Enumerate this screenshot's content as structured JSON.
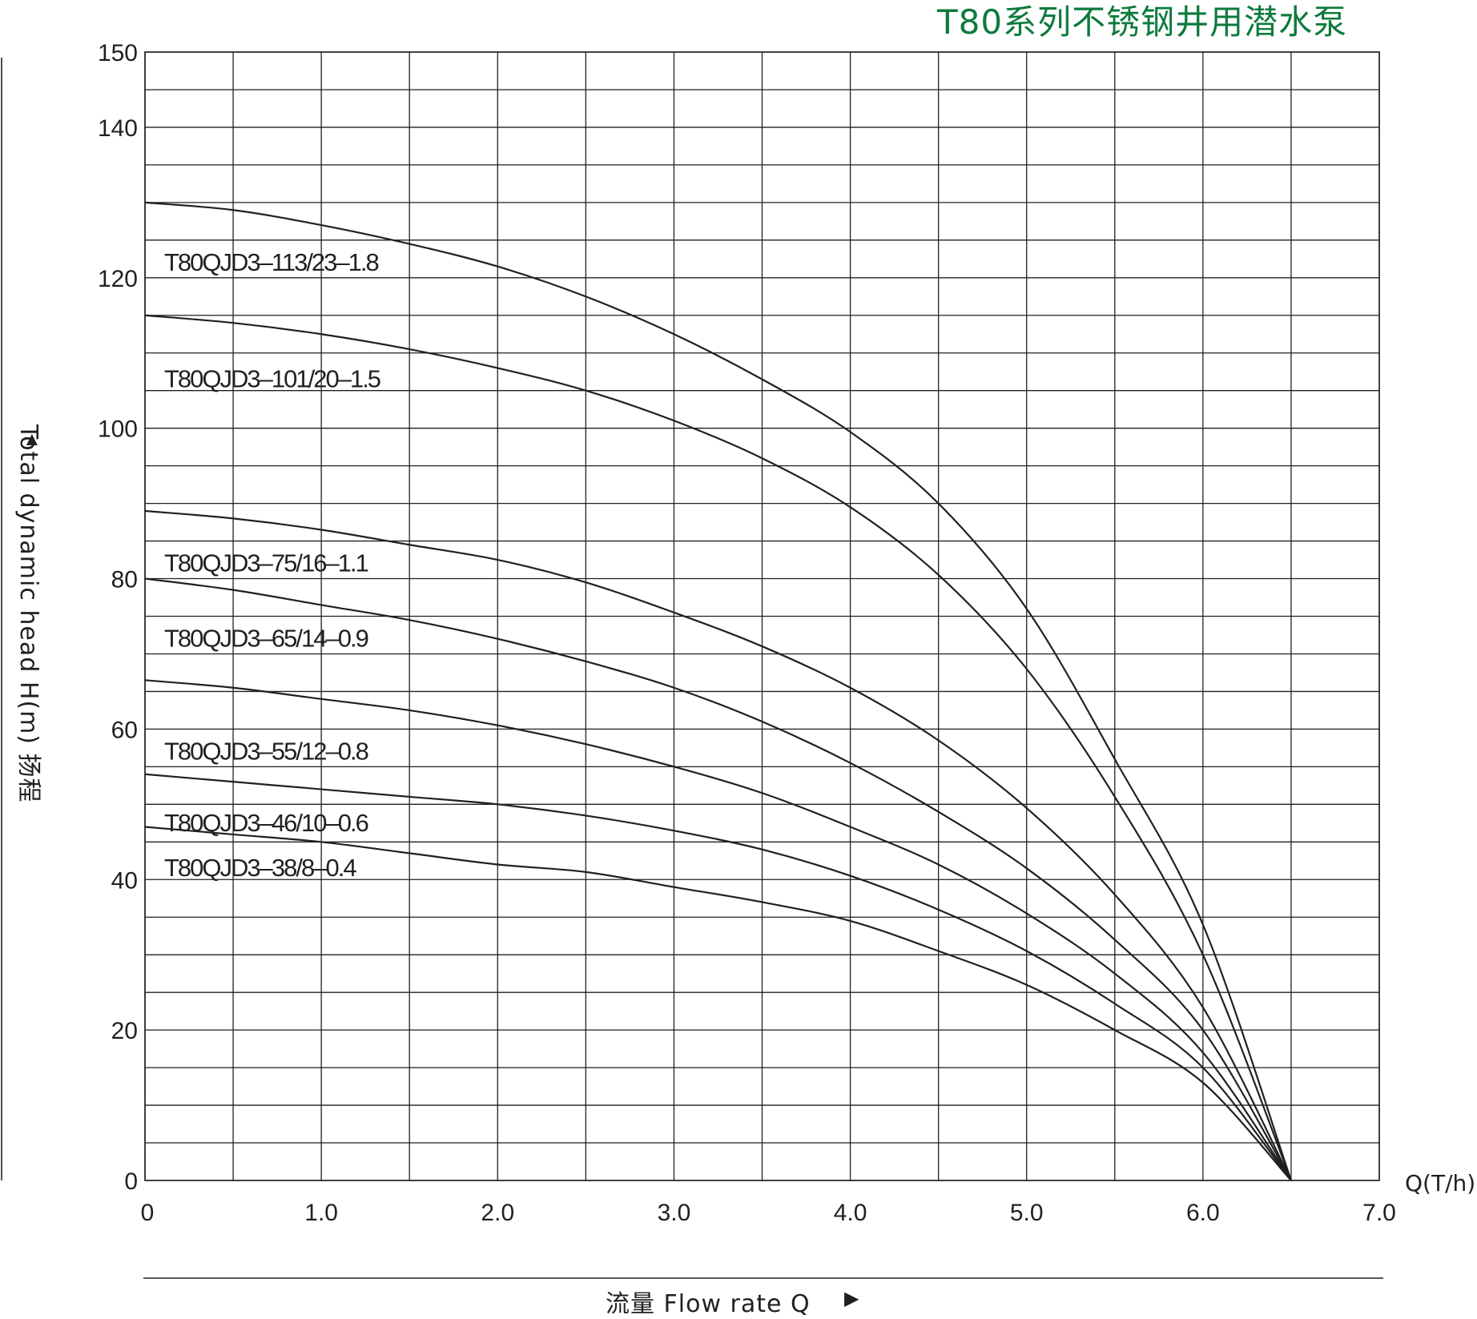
{
  "title": "T80系列不锈钢井用潜水泵",
  "ylabel": "Total dynamic head H(m) 扬程",
  "xlabel": "流量  Flow rate Q",
  "x_unit_label": "Q(T/h)",
  "y_arrow": "▲",
  "x_arrow": "▶",
  "colors": {
    "title": "#0d7a3c",
    "lines": "#231f20",
    "grid": "#231f20"
  },
  "chart_data": {
    "type": "line",
    "title": "T80系列不锈钢井用潜水泵",
    "xlabel": "流量 Flow rate Q",
    "ylabel": "Total dynamic head H(m) 扬程",
    "xlim": [
      0,
      7.0
    ],
    "ylim": [
      0,
      150
    ],
    "grid": true,
    "x_ticks": [
      0,
      1.0,
      2.0,
      3.0,
      4.0,
      5.0,
      6.0,
      7.0
    ],
    "x_tick_labels": [
      "0",
      "1.0",
      "2.0",
      "3.0",
      "4.0",
      "5.0",
      "6.0",
      "7.0"
    ],
    "y_ticks": [
      0,
      20,
      40,
      60,
      80,
      100,
      120,
      140,
      150
    ],
    "y_tick_labels": [
      "0",
      "20",
      "40",
      "60",
      "80",
      "100",
      "120",
      "140",
      "150"
    ],
    "series": [
      {
        "name": "T80QJD3–113/23–1.8",
        "label_pos": [
          0.1,
          122
        ],
        "x": [
          0,
          0.5,
          1.0,
          1.5,
          2.0,
          2.5,
          3.0,
          3.5,
          4.0,
          4.5,
          5.0,
          5.5,
          6.0,
          6.5
        ],
        "y": [
          130,
          129,
          127,
          124.5,
          121.5,
          117.5,
          112.5,
          106.5,
          99.5,
          90,
          76,
          56,
          34,
          0
        ]
      },
      {
        "name": "T80QJD3–101/20–1.5",
        "label_pos": [
          0.1,
          106.5
        ],
        "x": [
          0,
          0.5,
          1.0,
          1.5,
          2.0,
          2.5,
          3.0,
          3.5,
          4.0,
          4.5,
          5.0,
          5.5,
          6.0,
          6.5
        ],
        "y": [
          115,
          114,
          112.5,
          110.5,
          108,
          105,
          101,
          96,
          89.5,
          80.5,
          68,
          51,
          30,
          0
        ]
      },
      {
        "name": "T80QJD3–75/16–1.1",
        "label_pos": [
          0.1,
          82
        ],
        "x": [
          0,
          0.5,
          1.0,
          1.5,
          2.0,
          2.5,
          3.0,
          3.5,
          4.0,
          4.5,
          5.0,
          5.5,
          6.0,
          6.5
        ],
        "y": [
          89,
          88,
          86.5,
          84.5,
          82.5,
          79.5,
          75.5,
          71,
          65.5,
          58.5,
          49.5,
          38,
          23,
          0
        ]
      },
      {
        "name": "T80QJD3–65/14–0.9",
        "label_pos": [
          0.1,
          72
        ],
        "x": [
          0,
          0.5,
          1.0,
          1.5,
          2.0,
          2.5,
          3.0,
          3.5,
          4.0,
          4.5,
          5.0,
          5.5,
          6.0,
          6.5
        ],
        "y": [
          80,
          78.5,
          76.5,
          74.5,
          72,
          69,
          65.5,
          61,
          55.5,
          49,
          41.5,
          32,
          20,
          0
        ]
      },
      {
        "name": "T80QJD3–55/12–0.8",
        "label_pos": [
          0.1,
          57
        ],
        "x": [
          0,
          0.5,
          1.0,
          1.5,
          2.0,
          2.5,
          3.0,
          3.5,
          4.0,
          4.5,
          5.0,
          5.5,
          6.0,
          6.5
        ],
        "y": [
          66.5,
          65.5,
          64,
          62.5,
          60.5,
          58,
          55,
          51.5,
          47,
          42,
          35.5,
          27.5,
          17,
          0
        ]
      },
      {
        "name": "T80QJD3–46/10–0.6",
        "label_pos": [
          0.1,
          47.5
        ],
        "x": [
          0,
          0.5,
          1.0,
          1.5,
          2.0,
          2.5,
          3.0,
          3.5,
          4.0,
          4.5,
          5.0,
          5.5,
          6.0,
          6.5
        ],
        "y": [
          54,
          53,
          52,
          51,
          50,
          48.5,
          46.5,
          44,
          40.5,
          36,
          30.5,
          23.5,
          15,
          0
        ]
      },
      {
        "name": "T80QJD3–38/8–0.4",
        "label_pos": [
          0.1,
          41.5
        ],
        "x": [
          0,
          0.5,
          1.0,
          1.5,
          2.0,
          2.5,
          3.0,
          3.5,
          4.0,
          4.5,
          5.0,
          5.5,
          6.0,
          6.5
        ],
        "y": [
          47,
          46,
          45,
          43.5,
          42,
          41,
          39,
          37,
          34.5,
          30.5,
          26,
          20,
          13,
          0
        ]
      }
    ]
  }
}
